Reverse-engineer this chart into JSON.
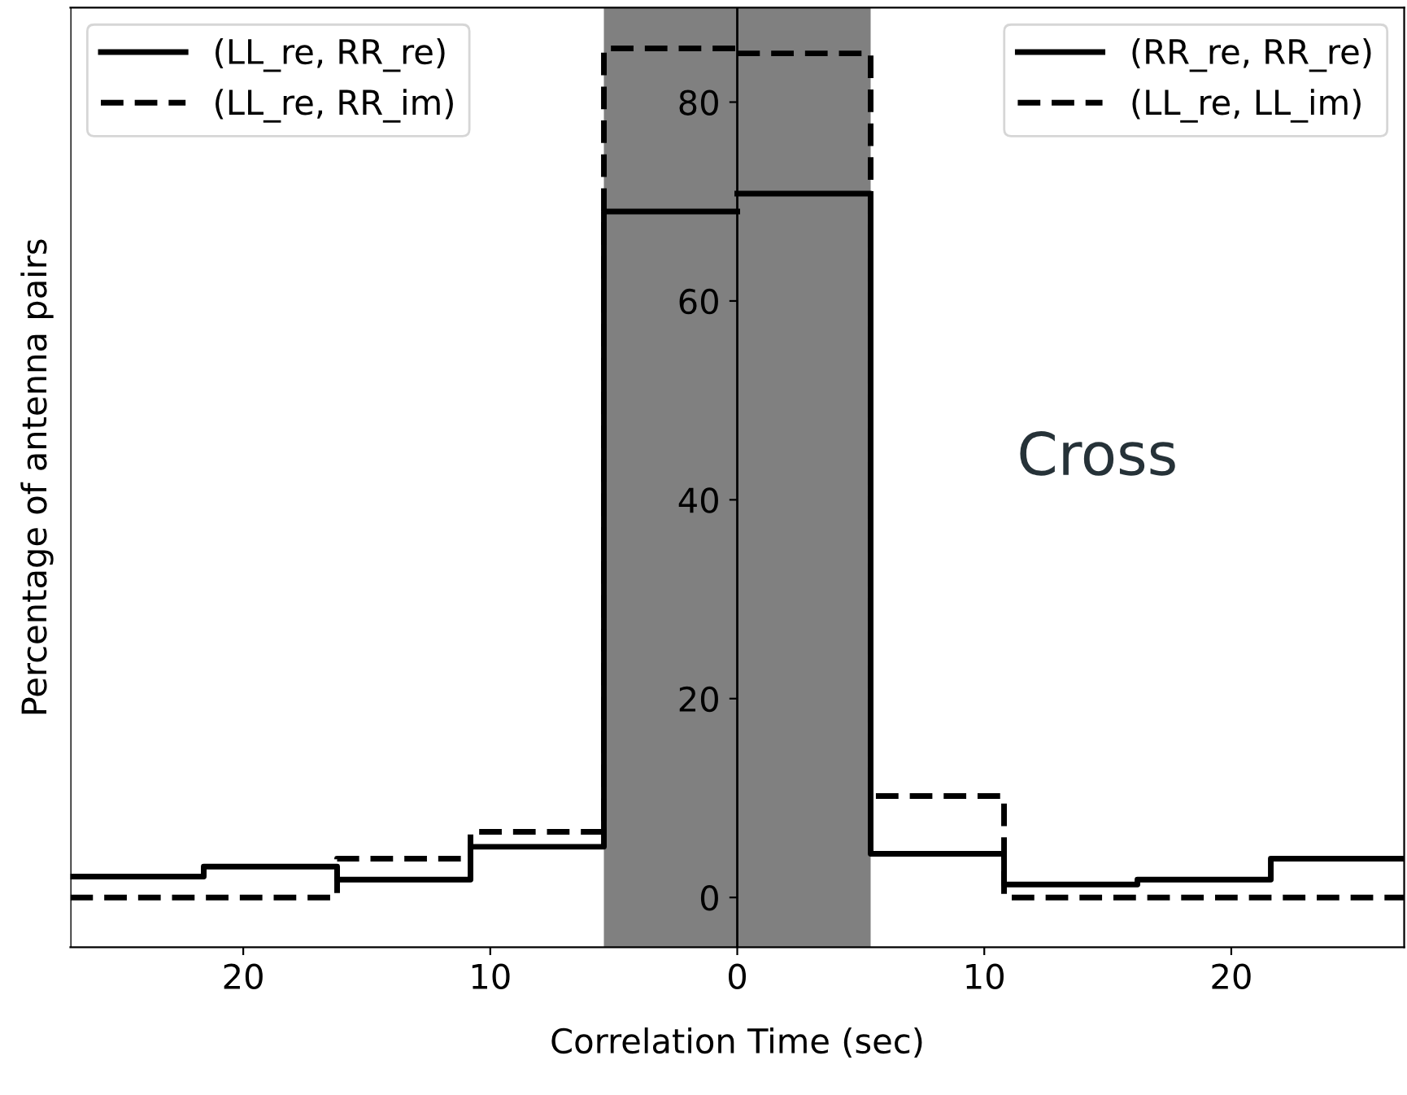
{
  "chart_data": {
    "type": "step",
    "xlabel": "Correlation Time (sec)",
    "ylabel": "Percentage of antenna pairs",
    "xlim": [
      -27,
      27
    ],
    "ylim": [
      -5,
      89.5
    ],
    "xticks": [
      {
        "value": -20,
        "label": "20"
      },
      {
        "value": -10,
        "label": "10"
      },
      0,
      10,
      20
    ],
    "yticks": [
      0,
      20,
      40,
      60,
      80
    ],
    "grid": false,
    "legend": "top",
    "annotations": [
      "Cross"
    ],
    "bands": [
      {
        "axis": "x",
        "from": -5.4,
        "to": 5.4,
        "color": "#808080"
      }
    ],
    "series": [
      {
        "name": "(LL_re, RR_re)",
        "color": "#000000",
        "line_style": "solid",
        "x": [
          -27,
          -21.6,
          -16.2,
          -10.8,
          -5.4,
          0
        ],
        "values": [
          2.1,
          3.1,
          1.8,
          5.1,
          69,
          69
        ]
      },
      {
        "name": "(LL_re, RR_im)",
        "color": "#000000",
        "line_style": "dashed",
        "x": [
          -27,
          -21.6,
          -16.2,
          -10.8,
          -5.4,
          0
        ],
        "values": [
          0,
          0,
          3.9,
          6.6,
          85.4,
          85.4
        ]
      },
      {
        "name": "(RR_re, RR_re)",
        "color": "#000000",
        "line_style": "solid",
        "x": [
          0,
          5.4,
          10.8,
          16.2,
          21.6,
          27
        ],
        "values": [
          70.8,
          4.4,
          1.3,
          1.8,
          3.9,
          3.9
        ]
      },
      {
        "name": "(LL_re, LL_im)",
        "color": "#000000",
        "line_style": "dashed",
        "x": [
          0,
          5.4,
          10.8,
          16.2,
          21.6,
          27
        ],
        "values": [
          84.9,
          10.2,
          0,
          0,
          0,
          0
        ]
      }
    ]
  }
}
